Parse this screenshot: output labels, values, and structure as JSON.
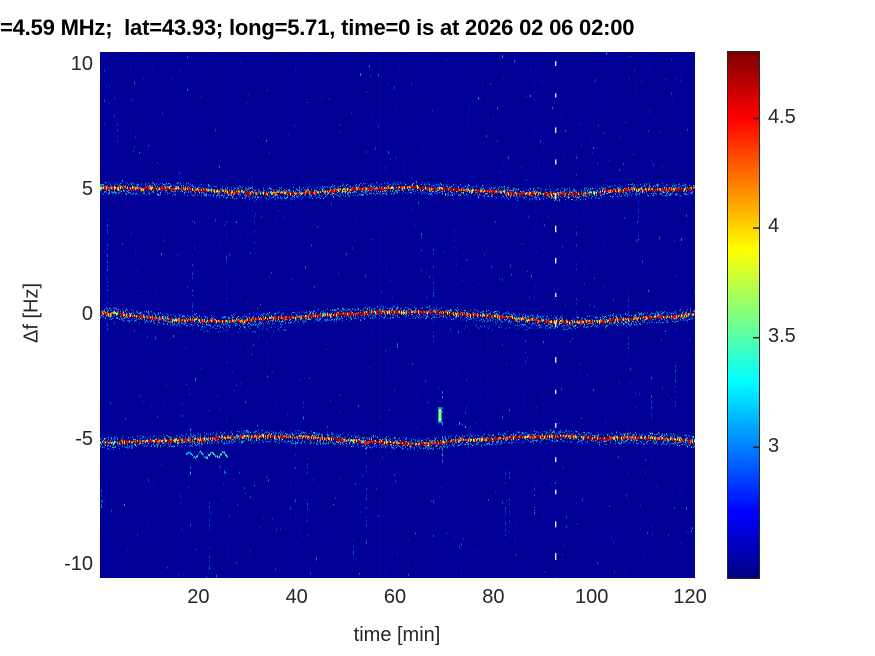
{
  "figure": {
    "title": "=4.59 MHz;  lat=43.93; long=5.71, time=0 is at 2026 02 06 02:00"
  },
  "colors": {
    "background": "#ffffff",
    "title_text": "#000000",
    "tick_text": "#262626",
    "plot_background": "#000095",
    "line_core": "#a00000",
    "dashed_marker": "#eef4ff"
  },
  "chart_data": {
    "type": "heatmap",
    "title": "=4.59 MHz;  lat=43.93; long=5.71, time=0 is at 2026 02 06 02:00",
    "xlabel": "time [min]",
    "ylabel": "Δf [Hz]",
    "xlim": [
      0,
      121
    ],
    "ylim": [
      -10.5,
      10.5
    ],
    "xticks": [
      20,
      40,
      60,
      80,
      100,
      120
    ],
    "yticks": [
      10,
      5,
      0,
      -5,
      -10
    ],
    "colormap": "jet",
    "color_range": [
      2.4,
      4.8
    ],
    "colorbar_ticks": [
      3,
      3.5,
      4,
      4.5
    ],
    "background_value": 2.45,
    "series": [
      {
        "name": "spectral-line-plus5Hz",
        "center_hz": 5,
        "peak_value": 4.7,
        "wiggle_hz": 0.1,
        "wiggle_period_min": 58,
        "wiggle_phase": 0.9
      },
      {
        "name": "spectral-line-0Hz",
        "center_hz": 0,
        "peak_value": 4.7,
        "wiggle_hz": 0.14,
        "wiggle_period_min": 72,
        "wiggle_phase": 2.7
      },
      {
        "name": "spectral-line-minus5Hz",
        "center_hz": -5,
        "peak_value": 4.7,
        "wiggle_hz": 0.11,
        "wiggle_period_min": 64,
        "wiggle_phase": 4.5
      }
    ],
    "events": {
      "vertical_dashed_line_min": 92.5,
      "bright_spot": {
        "time_min": 69,
        "freq_hz": -4.0,
        "value": 3.75
      }
    },
    "artifacts": [
      {
        "type": "cyan_squiggle",
        "t_start": 17.5,
        "t_end": 26,
        "freq_hz": -5.55
      },
      {
        "type": "cyan_patch",
        "t_start": 20,
        "t_end": 38,
        "freq_hz": -0.55
      },
      {
        "type": "cyan_patch",
        "t_start": 74,
        "t_end": 96,
        "freq_hz": -0.45
      }
    ],
    "noise": {
      "seed": 42,
      "speckle_per_column": 7,
      "streak_count": 34
    }
  }
}
